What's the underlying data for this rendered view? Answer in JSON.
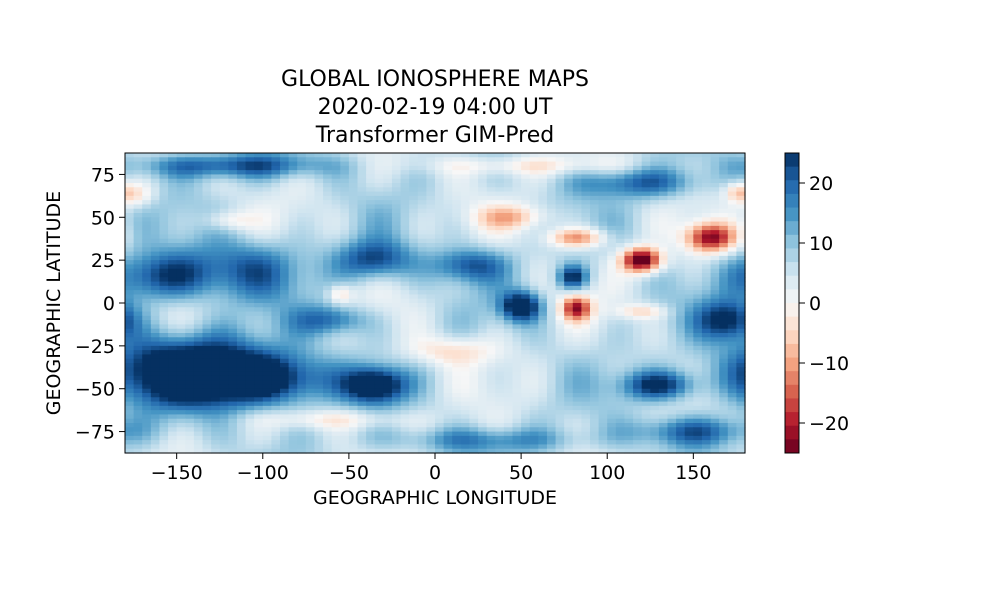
{
  "chart_data": {
    "type": "heatmap",
    "title": [
      "GLOBAL IONOSPHERE MAPS",
      "2020-02-19 04:00 UT",
      "Transformer GIM-Pred"
    ],
    "xlabel": "GEOGRAPHIC LONGITUDE",
    "ylabel": "GEOGRAPHIC LATITUDE",
    "xlim": [
      -180,
      180
    ],
    "ylim": [
      -87.5,
      87.5
    ],
    "xticks": [
      -150,
      -100,
      -50,
      0,
      50,
      100,
      150
    ],
    "xtick_labels": [
      "−150",
      "−100",
      "−50",
      "0",
      "50",
      "100",
      "150"
    ],
    "yticks": [
      -75,
      -50,
      -25,
      0,
      25,
      50,
      75
    ],
    "ytick_labels": [
      "−75",
      "−50",
      "−25",
      "0",
      "25",
      "50",
      "75"
    ],
    "colormap": "RdBu",
    "clim": [
      -25,
      25
    ],
    "colorbar_ticks": [
      -20,
      -10,
      0,
      10,
      20
    ],
    "colorbar_tick_labels": [
      "−20",
      "−10",
      "0",
      "10",
      "20"
    ],
    "grid_resolution_deg": [
      5,
      2.5
    ],
    "features": [
      {
        "lon": -140,
        "lat": -40,
        "sigma_lon": 35,
        "sigma_lat": 14,
        "value": 30
      },
      {
        "lon": -95,
        "lat": -45,
        "sigma_lon": 25,
        "sigma_lat": 10,
        "value": 18
      },
      {
        "lon": -160,
        "lat": 15,
        "sigma_lon": 20,
        "sigma_lat": 10,
        "value": 18
      },
      {
        "lon": -110,
        "lat": 20,
        "sigma_lon": 25,
        "sigma_lat": 12,
        "value": 14
      },
      {
        "lon": -35,
        "lat": 25,
        "sigma_lon": 15,
        "sigma_lat": 8,
        "value": 18
      },
      {
        "lon": -35,
        "lat": -48,
        "sigma_lon": 12,
        "sigma_lat": 7,
        "value": 25
      },
      {
        "lon": 20,
        "lat": 22,
        "sigma_lon": 15,
        "sigma_lat": 7,
        "value": 16
      },
      {
        "lon": 50,
        "lat": -2,
        "sigma_lon": 8,
        "sigma_lat": 6,
        "value": 25
      },
      {
        "lon": 80,
        "lat": 15,
        "sigma_lon": 6,
        "sigma_lat": 5,
        "value": 20
      },
      {
        "lon": 170,
        "lat": -10,
        "sigma_lon": 12,
        "sigma_lat": 8,
        "value": 20
      },
      {
        "lon": 130,
        "lat": -48,
        "sigma_lon": 15,
        "sigma_lat": 6,
        "value": 20
      },
      {
        "lon": 120,
        "lat": 70,
        "sigma_lon": 25,
        "sigma_lat": 6,
        "value": 14
      },
      {
        "lon": -120,
        "lat": 80,
        "sigma_lon": 40,
        "sigma_lat": 5,
        "value": 16
      },
      {
        "lon": 150,
        "lat": -75,
        "sigma_lon": 25,
        "sigma_lat": 6,
        "value": 14
      },
      {
        "lon": 30,
        "lat": -80,
        "sigma_lon": 40,
        "sigma_lat": 5,
        "value": 10
      },
      {
        "lon": -60,
        "lat": -10,
        "sigma_lon": 15,
        "sigma_lat": 6,
        "value": 14
      },
      {
        "lon": 120,
        "lat": 25,
        "sigma_lon": 8,
        "sigma_lat": 5,
        "value": -35
      },
      {
        "lon": 160,
        "lat": 38,
        "sigma_lon": 10,
        "sigma_lat": 6,
        "value": -28
      },
      {
        "lon": 82,
        "lat": 38,
        "sigma_lon": 12,
        "sigma_lat": 4,
        "value": -18
      },
      {
        "lon": 82,
        "lat": -3,
        "sigma_lon": 6,
        "sigma_lat": 5,
        "value": -25
      },
      {
        "lon": 45,
        "lat": 50,
        "sigma_lon": 15,
        "sigma_lat": 5,
        "value": -12
      },
      {
        "lon": -175,
        "lat": 63,
        "sigma_lon": 8,
        "sigma_lat": 5,
        "value": -10
      },
      {
        "lon": -55,
        "lat": 5,
        "sigma_lon": 5,
        "sigma_lat": 4,
        "value": -10
      },
      {
        "lon": 10,
        "lat": -28,
        "sigma_lon": 18,
        "sigma_lat": 6,
        "value": -10
      },
      {
        "lon": -60,
        "lat": -68,
        "sigma_lon": 30,
        "sigma_lat": 4,
        "value": -8
      },
      {
        "lon": 120,
        "lat": -5,
        "sigma_lon": 10,
        "sigma_lat": 3,
        "value": -10
      },
      {
        "lon": 50,
        "lat": 80,
        "sigma_lon": 40,
        "sigma_lat": 4,
        "value": -8
      },
      {
        "lon": -120,
        "lat": 48,
        "sigma_lon": 10,
        "sigma_lat": 4,
        "value": -8
      },
      {
        "lon": 175,
        "lat": 65,
        "sigma_lon": 5,
        "sigma_lat": 4,
        "value": -10
      }
    ]
  }
}
